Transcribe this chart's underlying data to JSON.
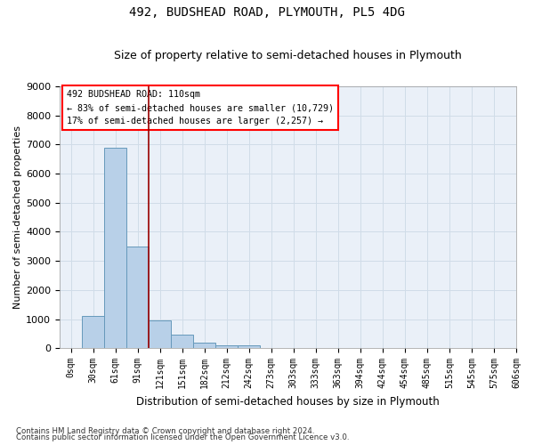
{
  "title": "492, BUDSHEAD ROAD, PLYMOUTH, PL5 4DG",
  "subtitle": "Size of property relative to semi-detached houses in Plymouth",
  "xlabel": "Distribution of semi-detached houses by size in Plymouth",
  "ylabel": "Number of semi-detached properties",
  "bin_labels": [
    "0sqm",
    "30sqm",
    "61sqm",
    "91sqm",
    "121sqm",
    "151sqm",
    "182sqm",
    "212sqm",
    "242sqm",
    "273sqm",
    "303sqm",
    "333sqm",
    "363sqm",
    "394sqm",
    "424sqm",
    "454sqm",
    "485sqm",
    "515sqm",
    "545sqm",
    "575sqm",
    "606sqm"
  ],
  "bar_values": [
    0,
    1100,
    6900,
    3500,
    950,
    450,
    200,
    100,
    100,
    0,
    0,
    0,
    0,
    0,
    0,
    0,
    0,
    0,
    0,
    0
  ],
  "bar_color": "#b8d0e8",
  "bar_edge_color": "#6699bb",
  "grid_color": "#d0dce8",
  "bg_color": "#eaf0f8",
  "ylim": [
    0,
    9000
  ],
  "yticks": [
    0,
    1000,
    2000,
    3000,
    4000,
    5000,
    6000,
    7000,
    8000,
    9000
  ],
  "red_line_bin": 3,
  "annotation_title": "492 BUDSHEAD ROAD: 110sqm",
  "annotation_line1": "← 83% of semi-detached houses are smaller (10,729)",
  "annotation_line2": "17% of semi-detached houses are larger (2,257) →",
  "footer1": "Contains HM Land Registry data © Crown copyright and database right 2024.",
  "footer2": "Contains public sector information licensed under the Open Government Licence v3.0."
}
